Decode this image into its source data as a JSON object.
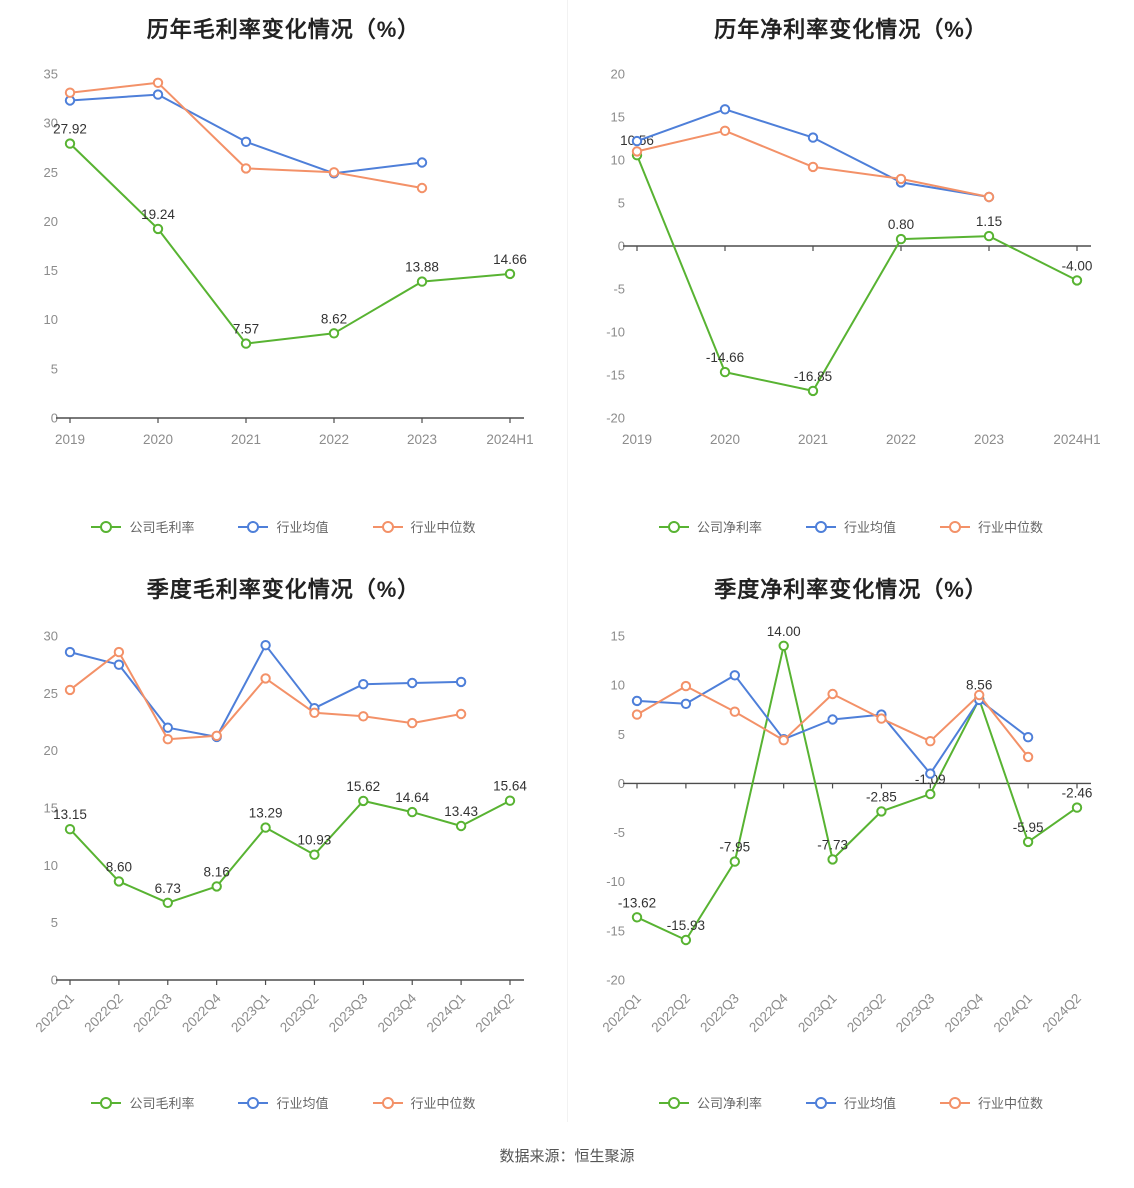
{
  "page": {
    "source_note": "数据来源：恒生聚源"
  },
  "colors": {
    "company": "#58b332",
    "industry_mean": "#4e7fd9",
    "industry_median": "#f39168",
    "axis_line": "#4d4d4d",
    "axis_text": "#8c8c8c",
    "value_label_text": "#333333",
    "title_text": "#222222",
    "legend_text": "#666666"
  },
  "chart_data": [
    {
      "type": "line",
      "title": "历年毛利率变化情况（%）",
      "categories": [
        "2019",
        "2020",
        "2021",
        "2022",
        "2023",
        "2024H1"
      ],
      "ylim": [
        0,
        35
      ],
      "yticks": [
        0,
        5,
        10,
        15,
        20,
        25,
        30,
        35
      ],
      "x_label_rotate": false,
      "grid": false,
      "legend_position": "bottom",
      "series": [
        {
          "key": "company",
          "name": "公司毛利率",
          "color": "#58b332",
          "values": [
            27.92,
            19.24,
            7.57,
            8.62,
            13.88,
            14.66
          ],
          "labels": [
            "27.92",
            "19.24",
            "7.57",
            "8.62",
            "13.88",
            "14.66"
          ]
        },
        {
          "key": "industry-mean",
          "name": "行业均值",
          "color": "#4e7fd9",
          "values": [
            32.3,
            32.9,
            28.1,
            24.9,
            26.0,
            null
          ]
        },
        {
          "key": "industry-median",
          "name": "行业中位数",
          "color": "#f39168",
          "values": [
            33.1,
            34.1,
            25.4,
            25.0,
            23.4,
            null
          ]
        }
      ]
    },
    {
      "type": "line",
      "title": "历年净利率变化情况（%）",
      "categories": [
        "2019",
        "2020",
        "2021",
        "2022",
        "2023",
        "2024H1"
      ],
      "ylim": [
        -20,
        20
      ],
      "yticks": [
        -20,
        -15,
        -10,
        -5,
        0,
        5,
        10,
        15,
        20
      ],
      "x_label_rotate": false,
      "grid": false,
      "legend_position": "bottom",
      "series": [
        {
          "key": "company",
          "name": "公司净利率",
          "color": "#58b332",
          "values": [
            10.56,
            -14.66,
            -16.85,
            0.8,
            1.15,
            -4.0
          ],
          "labels": [
            "10.56",
            "-14.66",
            "-16.85",
            "0.80",
            "1.15",
            "-4.00"
          ]
        },
        {
          "key": "industry-mean",
          "name": "行业均值",
          "color": "#4e7fd9",
          "values": [
            12.2,
            15.9,
            12.6,
            7.4,
            5.7,
            null
          ]
        },
        {
          "key": "industry-median",
          "name": "行业中位数",
          "color": "#f39168",
          "values": [
            11.0,
            13.4,
            9.2,
            7.8,
            5.7,
            null
          ]
        }
      ]
    },
    {
      "type": "line",
      "title": "季度毛利率变化情况（%）",
      "categories": [
        "2022Q1",
        "2022Q2",
        "2022Q3",
        "2022Q4",
        "2023Q1",
        "2023Q2",
        "2023Q3",
        "2023Q4",
        "2024Q1",
        "2024Q2"
      ],
      "ylim": [
        0,
        30
      ],
      "yticks": [
        0,
        5,
        10,
        15,
        20,
        25,
        30
      ],
      "x_label_rotate": true,
      "grid": false,
      "legend_position": "bottom",
      "series": [
        {
          "key": "company",
          "name": "公司毛利率",
          "color": "#58b332",
          "values": [
            13.15,
            8.6,
            6.73,
            8.16,
            13.29,
            10.93,
            15.62,
            14.64,
            13.43,
            15.64
          ],
          "labels": [
            "13.15",
            "8.60",
            "6.73",
            "8.16",
            "13.29",
            "10.93",
            "15.62",
            "14.64",
            "13.43",
            "15.64"
          ]
        },
        {
          "key": "industry-mean",
          "name": "行业均值",
          "color": "#4e7fd9",
          "values": [
            28.6,
            27.5,
            22.0,
            21.2,
            29.2,
            23.7,
            25.8,
            25.9,
            26.0,
            null
          ]
        },
        {
          "key": "industry-median",
          "name": "行业中位数",
          "color": "#f39168",
          "values": [
            25.3,
            28.6,
            21.0,
            21.3,
            26.3,
            23.3,
            23.0,
            22.4,
            23.2,
            null
          ]
        }
      ]
    },
    {
      "type": "line",
      "title": "季度净利率变化情况（%）",
      "categories": [
        "2022Q1",
        "2022Q2",
        "2022Q3",
        "2022Q4",
        "2023Q1",
        "2023Q2",
        "2023Q3",
        "2023Q4",
        "2024Q1",
        "2024Q2"
      ],
      "ylim": [
        -20,
        15
      ],
      "yticks": [
        -20,
        -15,
        -10,
        -5,
        0,
        5,
        10,
        15
      ],
      "x_label_rotate": true,
      "grid": false,
      "legend_position": "bottom",
      "series": [
        {
          "key": "company",
          "name": "公司净利率",
          "color": "#58b332",
          "values": [
            -13.62,
            -15.93,
            -7.95,
            14.0,
            -7.73,
            -2.85,
            -1.09,
            8.56,
            -5.95,
            -2.46
          ],
          "labels": [
            "-13.62",
            "-15.93",
            "-7.95",
            "14.00",
            "-7.73",
            "-2.85",
            "-1.09",
            "8.56",
            "-5.95",
            "-2.46"
          ]
        },
        {
          "key": "industry-mean",
          "name": "行业均值",
          "color": "#4e7fd9",
          "values": [
            8.4,
            8.1,
            11.0,
            4.5,
            6.5,
            7.0,
            1.0,
            8.5,
            4.7,
            null
          ]
        },
        {
          "key": "industry-median",
          "name": "行业中位数",
          "color": "#f39168",
          "values": [
            7.0,
            9.9,
            7.3,
            4.4,
            9.1,
            6.6,
            4.3,
            9.0,
            2.7,
            null
          ]
        }
      ]
    }
  ]
}
